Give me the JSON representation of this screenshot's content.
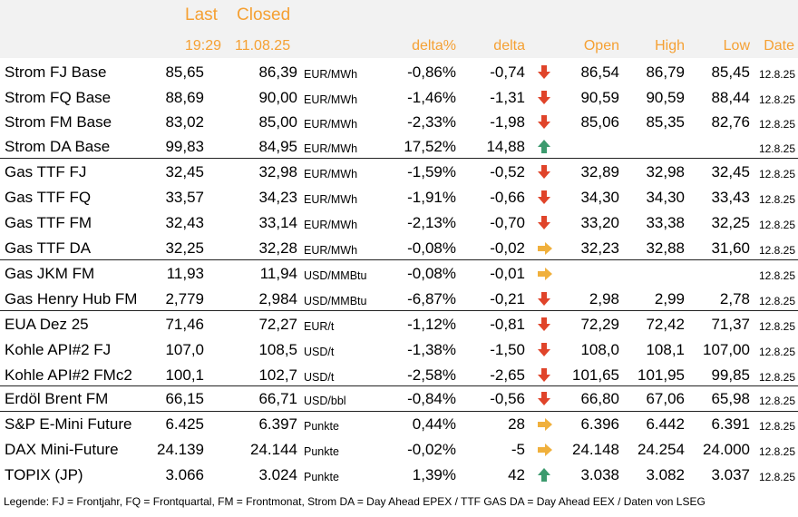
{
  "header": {
    "last_label": "Last",
    "closed_label": "Closed",
    "last_time": "19:29",
    "closed_date": "11.08.25",
    "delta_pct_label": "delta%",
    "delta_label": "delta",
    "open_label": "Open",
    "high_label": "High",
    "low_label": "Low",
    "date_label": "Date"
  },
  "colors": {
    "header_text": "#f5a033",
    "header_bg": "#f2f2f2",
    "arrow_down": "#e0442a",
    "arrow_up": "#3c9a6e",
    "arrow_side": "#f0b03c"
  },
  "rows": [
    {
      "name": "Strom FJ Base",
      "last": "85,65",
      "closed": "86,39",
      "unit": "EUR/MWh",
      "delta_pct": "-0,86%",
      "delta": "-0,74",
      "trend": "down",
      "open": "86,54",
      "high": "86,79",
      "low": "85,45",
      "date": "12.8.25"
    },
    {
      "name": "Strom FQ Base",
      "last": "88,69",
      "closed": "90,00",
      "unit": "EUR/MWh",
      "delta_pct": "-1,46%",
      "delta": "-1,31",
      "trend": "down",
      "open": "90,59",
      "high": "90,59",
      "low": "88,44",
      "date": "12.8.25"
    },
    {
      "name": "Strom FM Base",
      "last": "83,02",
      "closed": "85,00",
      "unit": "EUR/MWh",
      "delta_pct": "-2,33%",
      "delta": "-1,98",
      "trend": "down",
      "open": "85,06",
      "high": "85,35",
      "low": "82,76",
      "date": "12.8.25"
    },
    {
      "name": "Strom DA Base",
      "last": "99,83",
      "closed": "84,95",
      "unit": "EUR/MWh",
      "delta_pct": "17,52%",
      "delta": "14,88",
      "trend": "up",
      "open": "",
      "high": "",
      "low": "",
      "date": "12.8.25"
    },
    {
      "name": "Gas TTF FJ",
      "last": "32,45",
      "closed": "32,98",
      "unit": "EUR/MWh",
      "delta_pct": "-1,59%",
      "delta": "-0,52",
      "trend": "down",
      "open": "32,89",
      "high": "32,98",
      "low": "32,45",
      "date": "12.8.25"
    },
    {
      "name": "Gas TTF FQ",
      "last": "33,57",
      "closed": "34,23",
      "unit": "EUR/MWh",
      "delta_pct": "-1,91%",
      "delta": "-0,66",
      "trend": "down",
      "open": "34,30",
      "high": "34,30",
      "low": "33,43",
      "date": "12.8.25"
    },
    {
      "name": "Gas TTF FM",
      "last": "32,43",
      "closed": "33,14",
      "unit": "EUR/MWh",
      "delta_pct": "-2,13%",
      "delta": "-0,70",
      "trend": "down",
      "open": "33,20",
      "high": "33,38",
      "low": "32,25",
      "date": "12.8.25"
    },
    {
      "name": "Gas TTF DA",
      "last": "32,25",
      "closed": "32,28",
      "unit": "EUR/MWh",
      "delta_pct": "-0,08%",
      "delta": "-0,02",
      "trend": "side",
      "open": "32,23",
      "high": "32,88",
      "low": "31,60",
      "date": "12.8.25"
    },
    {
      "name": "Gas JKM FM",
      "last": "11,93",
      "closed": "11,94",
      "unit": "USD/MMBtu",
      "delta_pct": "-0,08%",
      "delta": "-0,01",
      "trend": "side",
      "open": "",
      "high": "",
      "low": "",
      "date": "12.8.25"
    },
    {
      "name": "Gas Henry Hub FM",
      "last": "2,779",
      "closed": "2,984",
      "unit": "USD/MMBtu",
      "delta_pct": "-6,87%",
      "delta": "-0,21",
      "trend": "down",
      "open": "2,98",
      "high": "2,99",
      "low": "2,78",
      "date": "12.8.25"
    },
    {
      "name": "EUA Dez 25",
      "last": "71,46",
      "closed": "72,27",
      "unit": "EUR/t",
      "delta_pct": "-1,12%",
      "delta": "-0,81",
      "trend": "down",
      "open": "72,29",
      "high": "72,42",
      "low": "71,37",
      "date": "12.8.25"
    },
    {
      "name": "Kohle API#2 FJ",
      "last": "107,0",
      "closed": "108,5",
      "unit": "USD/t",
      "delta_pct": "-1,38%",
      "delta": "-1,50",
      "trend": "down",
      "open": "108,0",
      "high": "108,1",
      "low": "107,00",
      "date": "12.8.25"
    },
    {
      "name": "Kohle API#2 FMc2",
      "last": "100,1",
      "closed": "102,7",
      "unit": "USD/t",
      "delta_pct": "-2,58%",
      "delta": "-2,65",
      "trend": "down",
      "open": "101,65",
      "high": "101,95",
      "low": "99,85",
      "date": "12.8.25"
    },
    {
      "name": "Erdöl Brent FM",
      "last": "66,15",
      "closed": "66,71",
      "unit": "USD/bbl",
      "delta_pct": "-0,84%",
      "delta": "-0,56",
      "trend": "down",
      "open": "66,80",
      "high": "67,06",
      "low": "65,98",
      "date": "12.8.25"
    },
    {
      "name": "S&P E-Mini Future",
      "last": "6.425",
      "closed": "6.397",
      "unit": "Punkte",
      "delta_pct": "0,44%",
      "delta": "28",
      "trend": "side",
      "open": "6.396",
      "high": "6.442",
      "low": "6.391",
      "date": "12.8.25"
    },
    {
      "name": "DAX Mini-Future",
      "last": "24.139",
      "closed": "24.144",
      "unit": "Punkte",
      "delta_pct": "-0,02%",
      "delta": "-5",
      "trend": "side",
      "open": "24.148",
      "high": "24.254",
      "low": "24.000",
      "date": "12.8.25"
    },
    {
      "name": "TOPIX (JP)",
      "last": "3.066",
      "closed": "3.024",
      "unit": "Punkte",
      "delta_pct": "1,39%",
      "delta": "42",
      "trend": "up",
      "open": "3.038",
      "high": "3.082",
      "low": "3.037",
      "date": "12.8.25"
    }
  ],
  "legend": "Legende: FJ = Frontjahr, FQ = Frontquartal, FM = Frontmonat, Strom DA = Day Ahead EPEX / TTF GAS DA = Day Ahead EEX / Daten von LSEG"
}
